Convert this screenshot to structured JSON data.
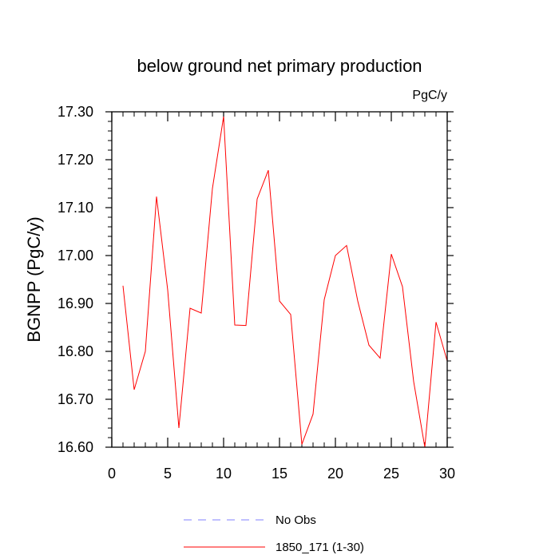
{
  "chart_data": {
    "type": "line",
    "title": "below ground net primary production",
    "units_label": "PgC/y",
    "ylabel": "BGNPP  (PgC/y)",
    "xlabel": "",
    "xlim": [
      0,
      30
    ],
    "ylim": [
      16.6,
      17.3
    ],
    "x_ticks": [
      0,
      5,
      10,
      15,
      20,
      25,
      30
    ],
    "x_tick_labels": [
      "0",
      "5",
      "10",
      "15",
      "20",
      "25",
      "30"
    ],
    "y_ticks": [
      16.6,
      16.7,
      16.8,
      16.9,
      17.0,
      17.1,
      17.2,
      17.3
    ],
    "y_tick_labels": [
      "16.60",
      "16.70",
      "16.80",
      "16.90",
      "17.00",
      "17.10",
      "17.20",
      "17.30"
    ],
    "grid": false,
    "legend_position": "bottom",
    "series": [
      {
        "name": "1850_171 (1-30)",
        "color": "#ff0000",
        "style": "solid",
        "x": [
          1,
          2,
          3,
          4,
          5,
          6,
          7,
          8,
          9,
          10,
          11,
          12,
          13,
          14,
          15,
          16,
          17,
          18,
          19,
          20,
          21,
          22,
          23,
          24,
          25,
          26,
          27,
          28,
          29,
          30
        ],
        "y": [
          16.937,
          16.72,
          16.8,
          17.123,
          16.928,
          16.64,
          16.89,
          16.88,
          17.14,
          17.29,
          16.855,
          16.854,
          17.118,
          17.178,
          16.905,
          16.877,
          16.606,
          16.669,
          16.908,
          17.0,
          17.021,
          16.905,
          16.813,
          16.786,
          17.003,
          16.935,
          16.737,
          16.6,
          16.861,
          16.78
        ]
      }
    ],
    "legend": [
      {
        "label": "No Obs",
        "color": "#8080ff",
        "style": "dashed"
      },
      {
        "label": "1850_171 (1-30)",
        "color": "#ff0000",
        "style": "solid"
      }
    ]
  }
}
